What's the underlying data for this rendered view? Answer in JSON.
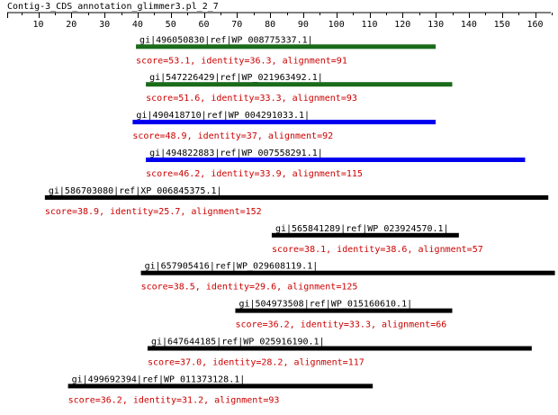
{
  "title": "Contig-3_CDS_annotation_glimmer3.pl_2_7",
  "axis": {
    "min": 1,
    "max": 165,
    "ticks": [
      10,
      20,
      30,
      40,
      50,
      60,
      70,
      80,
      90,
      100,
      110,
      120,
      130,
      140,
      150,
      160
    ]
  },
  "colors": {
    "green": "#1a6b1a",
    "blue": "#0000ee",
    "black": "#000000",
    "score_text": "#cc0000"
  },
  "chart_data": {
    "type": "alignment-map",
    "title": "Contig-3_CDS_annotation_glimmer3.pl_2_7",
    "axis_range": [
      1,
      165
    ],
    "hits": [
      {
        "label": "gi|496050830|ref|WP_008775337.1|",
        "start": 39.5,
        "end": 130,
        "color": "green",
        "score_text": "score=53.1, identity=36.3, alignment=91"
      },
      {
        "label": "gi|547226429|ref|WP_021963492.1|",
        "start": 42.5,
        "end": 135,
        "color": "green",
        "score_text": "score=51.6, identity=33.3, alignment=93"
      },
      {
        "label": "gi|490418710|ref|WP_004291033.1|",
        "start": 38.5,
        "end": 130,
        "color": "blue",
        "score_text": "score=48.9, identity=37, alignment=92"
      },
      {
        "label": "gi|494822883|ref|WP_007558291.1|",
        "start": 42.5,
        "end": 157,
        "color": "blue",
        "score_text": "score=46.2, identity=33.9, alignment=115"
      },
      {
        "label": "gi|586703080|ref|XP_006845375.1|",
        "start": 12,
        "end": 164,
        "color": "black",
        "score_text": "score=38.9, identity=25.7, alignment=152"
      },
      {
        "label": "gi|565841289|ref|WP_023924570.1|",
        "start": 80.5,
        "end": 137,
        "color": "black",
        "score_text": "score=38.1, identity=38.6, alignment=57"
      },
      {
        "label": "gi|657905416|ref|WP_029608119.1|",
        "start": 41,
        "end": 166,
        "color": "black",
        "score_text": "score=38.5, identity=29.6, alignment=125"
      },
      {
        "label": "gi|504973508|ref|WP_015160610.1|",
        "start": 69.5,
        "end": 135,
        "color": "black",
        "score_text": "score=36.2, identity=33.3, alignment=66"
      },
      {
        "label": "gi|647644185|ref|WP_025916190.1|",
        "start": 43,
        "end": 159,
        "color": "black",
        "score_text": "score=37.0, identity=28.2, alignment=117"
      },
      {
        "label": "gi|499692394|ref|WP_011373128.1|",
        "start": 19,
        "end": 111,
        "color": "black",
        "score_text": "score=36.2, identity=31.2, alignment=93"
      }
    ]
  }
}
